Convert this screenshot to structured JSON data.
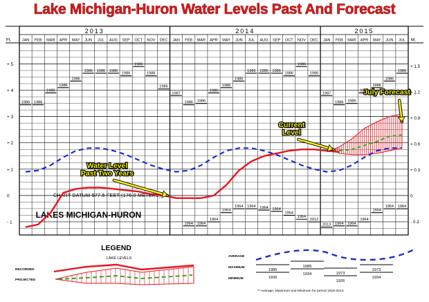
{
  "title": "Lake Michigan-Huron Water Levels Past And Forecast",
  "chart_data": {
    "type": "line",
    "years": [
      {
        "label": "2013",
        "start": 0,
        "span": 12
      },
      {
        "label": "2014",
        "start": 12,
        "span": 12
      },
      {
        "label": "2015",
        "start": 24,
        "span": 7
      }
    ],
    "months": [
      "JAN",
      "FEB",
      "MAR",
      "APR",
      "MAY",
      "JUN",
      "JUL",
      "AUG",
      "SEP",
      "OCT",
      "NOV",
      "DEC",
      "JAN",
      "FEB",
      "MAR",
      "APR",
      "MAY",
      "JUN",
      "JUL",
      "AUG",
      "SEP",
      "OCT",
      "NOV",
      "DEC",
      "JAN",
      "FEB",
      "MAR",
      "APR",
      "MAY",
      "JUN",
      "JUL"
    ],
    "left_axis": {
      "unit": "Ft.",
      "ticks": [
        {
          "v": 5,
          "label": "+ 5"
        },
        {
          "v": 4,
          "label": "+ 4"
        },
        {
          "v": 3,
          "label": "+ 3"
        },
        {
          "v": 2,
          "label": "+ 2"
        },
        {
          "v": 1,
          "label": "+ 1"
        },
        {
          "v": 0,
          "label": "0"
        },
        {
          "v": -1,
          "label": "- 1"
        }
      ]
    },
    "right_axis": {
      "unit": "M.",
      "ticks": [
        {
          "m": 1.5,
          "label": "+ 1.5"
        },
        {
          "m": 1.2,
          "label": "+ 1.2"
        },
        {
          "m": 0.9,
          "label": "+ 0.9"
        },
        {
          "m": 0.6,
          "label": "+ 0.6"
        },
        {
          "m": 0.3,
          "label": "+ 0.3"
        },
        {
          "m": 0,
          "label": "0"
        },
        {
          "m": -0.3,
          "label": "- 0.3"
        }
      ]
    },
    "ylim": [
      -1.5,
      5.8
    ],
    "recorded": [
      {
        "x": 0,
        "y": -1.2
      },
      {
        "x": 1,
        "y": -1.1
      },
      {
        "x": 2,
        "y": -0.65
      },
      {
        "x": 3,
        "y": 0.1
      },
      {
        "x": 4,
        "y": 0.25
      },
      {
        "x": 5,
        "y": 0.3
      },
      {
        "x": 6,
        "y": 0.3
      },
      {
        "x": 7,
        "y": 0.25
      },
      {
        "x": 8,
        "y": 0.2
      },
      {
        "x": 9,
        "y": 0.15
      },
      {
        "x": 10,
        "y": 0.05
      },
      {
        "x": 11,
        "y": 0.0
      },
      {
        "x": 12,
        "y": -0.1
      },
      {
        "x": 13,
        "y": -0.1
      },
      {
        "x": 14,
        "y": -0.1
      },
      {
        "x": 15,
        "y": 0.0
      },
      {
        "x": 16,
        "y": 0.4
      },
      {
        "x": 17,
        "y": 0.95
      },
      {
        "x": 18,
        "y": 1.3
      },
      {
        "x": 19,
        "y": 1.5
      },
      {
        "x": 20,
        "y": 1.6
      },
      {
        "x": 21,
        "y": 1.7
      },
      {
        "x": 22,
        "y": 1.75
      },
      {
        "x": 23,
        "y": 1.75
      },
      {
        "x": 24,
        "y": 1.7
      },
      {
        "x": 25,
        "y": 1.65
      }
    ],
    "average": [
      {
        "x": 0,
        "y": 0.9
      },
      {
        "x": 1,
        "y": 0.95
      },
      {
        "x": 2,
        "y": 1.15
      },
      {
        "x": 3,
        "y": 1.45
      },
      {
        "x": 4,
        "y": 1.7
      },
      {
        "x": 5,
        "y": 1.8
      },
      {
        "x": 6,
        "y": 1.8
      },
      {
        "x": 7,
        "y": 1.7
      },
      {
        "x": 8,
        "y": 1.55
      },
      {
        "x": 9,
        "y": 1.35
      },
      {
        "x": 10,
        "y": 1.15
      },
      {
        "x": 11,
        "y": 1.0
      },
      {
        "x": 12,
        "y": 0.9
      },
      {
        "x": 13,
        "y": 0.95
      },
      {
        "x": 14,
        "y": 1.15
      },
      {
        "x": 15,
        "y": 1.45
      },
      {
        "x": 16,
        "y": 1.7
      },
      {
        "x": 17,
        "y": 1.8
      },
      {
        "x": 18,
        "y": 1.8
      },
      {
        "x": 19,
        "y": 1.7
      },
      {
        "x": 20,
        "y": 1.55
      },
      {
        "x": 21,
        "y": 1.35
      },
      {
        "x": 22,
        "y": 1.15
      },
      {
        "x": 23,
        "y": 1.0
      },
      {
        "x": 24,
        "y": 0.9
      },
      {
        "x": 25,
        "y": 0.95
      },
      {
        "x": 26,
        "y": 1.15
      },
      {
        "x": 27,
        "y": 1.45
      },
      {
        "x": 28,
        "y": 1.7
      },
      {
        "x": 29,
        "y": 1.8
      },
      {
        "x": 30,
        "y": 1.8
      }
    ],
    "projected": [
      {
        "x": 24.5,
        "y": 1.75,
        "max": 1.75,
        "min": 1.75
      },
      {
        "x": 25,
        "y": 1.7,
        "max": 1.85,
        "min": 1.6
      },
      {
        "x": 26,
        "y": 1.75,
        "max": 2.15,
        "min": 1.55
      },
      {
        "x": 27,
        "y": 1.9,
        "max": 2.55,
        "min": 1.55
      },
      {
        "x": 28,
        "y": 2.05,
        "max": 2.8,
        "min": 1.6
      },
      {
        "x": 29,
        "y": 2.25,
        "max": 3.0,
        "min": 1.7
      },
      {
        "x": 30,
        "y": 2.3,
        "max": 3.1,
        "min": 1.8
      }
    ],
    "maximum_labels": [
      {
        "x": 0,
        "y": 3.5,
        "text": "1986"
      },
      {
        "x": 1,
        "y": 3.5,
        "text": "1986"
      },
      {
        "x": 2,
        "y": 3.95,
        "text": "1986"
      },
      {
        "x": 3,
        "y": 4.15,
        "text": "1986"
      },
      {
        "x": 4,
        "y": 4.4,
        "text": "1986"
      },
      {
        "x": 5,
        "y": 4.7,
        "text": "1986"
      },
      {
        "x": 6,
        "y": 4.7,
        "text": "1986"
      },
      {
        "x": 7,
        "y": 4.7,
        "text": "1986"
      },
      {
        "x": 8,
        "y": 4.6,
        "text": "1986"
      },
      {
        "x": 9,
        "y": 4.95,
        "text": "1986"
      },
      {
        "x": 10,
        "y": 4.6,
        "text": "1986"
      },
      {
        "x": 11,
        "y": 4.1,
        "text": "1986"
      },
      {
        "x": 12,
        "y": 3.85,
        "text": "1987"
      },
      {
        "x": 13,
        "y": 3.5,
        "text": "1986"
      },
      {
        "x": 14,
        "y": 3.55,
        "text": "1986"
      },
      {
        "x": 15,
        "y": 3.95,
        "text": "1986"
      },
      {
        "x": 16,
        "y": 4.15,
        "text": "1986"
      },
      {
        "x": 17,
        "y": 4.4,
        "text": "1986"
      },
      {
        "x": 18,
        "y": 4.7,
        "text": "1986"
      },
      {
        "x": 19,
        "y": 4.7,
        "text": "1986"
      },
      {
        "x": 20,
        "y": 4.7,
        "text": "1986"
      },
      {
        "x": 21,
        "y": 4.6,
        "text": "1986"
      },
      {
        "x": 22,
        "y": 4.95,
        "text": "1986"
      },
      {
        "x": 23,
        "y": 4.6,
        "text": "1986"
      },
      {
        "x": 24,
        "y": 3.85,
        "text": "1987"
      },
      {
        "x": 25,
        "y": 3.5,
        "text": "1986"
      },
      {
        "x": 26,
        "y": 3.55,
        "text": "1986"
      },
      {
        "x": 27,
        "y": 3.95,
        "text": "1986"
      },
      {
        "x": 28,
        "y": 4.15,
        "text": "1986"
      },
      {
        "x": 29,
        "y": 4.4,
        "text": "1986"
      },
      {
        "x": 30,
        "y": 4.7,
        "text": "1986"
      }
    ],
    "minimum_labels": [
      {
        "x": 13,
        "y": -1.1,
        "text": "1964"
      },
      {
        "x": 14,
        "y": -1.1,
        "text": "1964"
      },
      {
        "x": 15,
        "y": -0.95,
        "text": "1964"
      },
      {
        "x": 16,
        "y": -0.6,
        "text": "1964"
      },
      {
        "x": 17,
        "y": -0.45,
        "text": "1964"
      },
      {
        "x": 18,
        "y": -0.45,
        "text": "1964"
      },
      {
        "x": 19,
        "y": -0.5,
        "text": "1964"
      },
      {
        "x": 20,
        "y": -0.55,
        "text": "1964"
      },
      {
        "x": 21,
        "y": -0.7,
        "text": "1964"
      },
      {
        "x": 22,
        "y": -0.85,
        "text": "1964"
      },
      {
        "x": 23,
        "y": -0.95,
        "text": "2012"
      },
      {
        "x": 24,
        "y": -1.15,
        "text": "2013"
      },
      {
        "x": 25,
        "y": -1.1,
        "text": "1964"
      },
      {
        "x": 26,
        "y": -1.1,
        "text": "1964"
      },
      {
        "x": 27,
        "y": -0.95,
        "text": "1964"
      },
      {
        "x": 28,
        "y": -0.6,
        "text": "1964"
      },
      {
        "x": 29,
        "y": -0.45,
        "text": "1964"
      },
      {
        "x": 30,
        "y": -0.45,
        "text": "1964"
      }
    ],
    "annotations": [
      {
        "text": [
          "Water Level",
          "Past Two Years"
        ],
        "x": 6.5,
        "y": 1.05,
        "arrow_to_x": 11.3,
        "arrow_to_y": 0.0
      },
      {
        "text": [
          "Current",
          "Level"
        ],
        "x": 21.2,
        "y": 2.6,
        "arrow_to_x": 24.5,
        "arrow_to_y": 1.75
      },
      {
        "text": [
          "July Forecast"
        ],
        "x": 28.8,
        "y": 3.85,
        "arrow_to_x": 30.0,
        "arrow_to_y": 2.8
      }
    ],
    "datum_text": "CHART DATUM   577.5 FEET (176.0 METERS)",
    "lake_label": "LAKES  MICHIGAN-HURON"
  },
  "legend": {
    "title": "LEGEND",
    "subtitle": "LAKE LEVELS",
    "recorded_label": "RECORDED",
    "projected_label": "PROJECTED",
    "average_label": "AVERAGE",
    "maximum_label": "MAXIMUM",
    "minimum_label": "MINIMUM",
    "maximum_years": [
      "1985",
      "1985",
      "1973",
      "1973"
    ],
    "minimum_years": [
      "1936",
      "1934",
      "1926",
      "1934"
    ],
    "footnote": "** Average, Maximum and Minimum for period 1918-2013"
  },
  "colors": {
    "title": "#e21b1b",
    "recorded": "#e8141e",
    "average": "#1a2ccf",
    "projected": "#2aa82a",
    "hatch": "#e8141e",
    "callout": "#f5ef1a"
  }
}
